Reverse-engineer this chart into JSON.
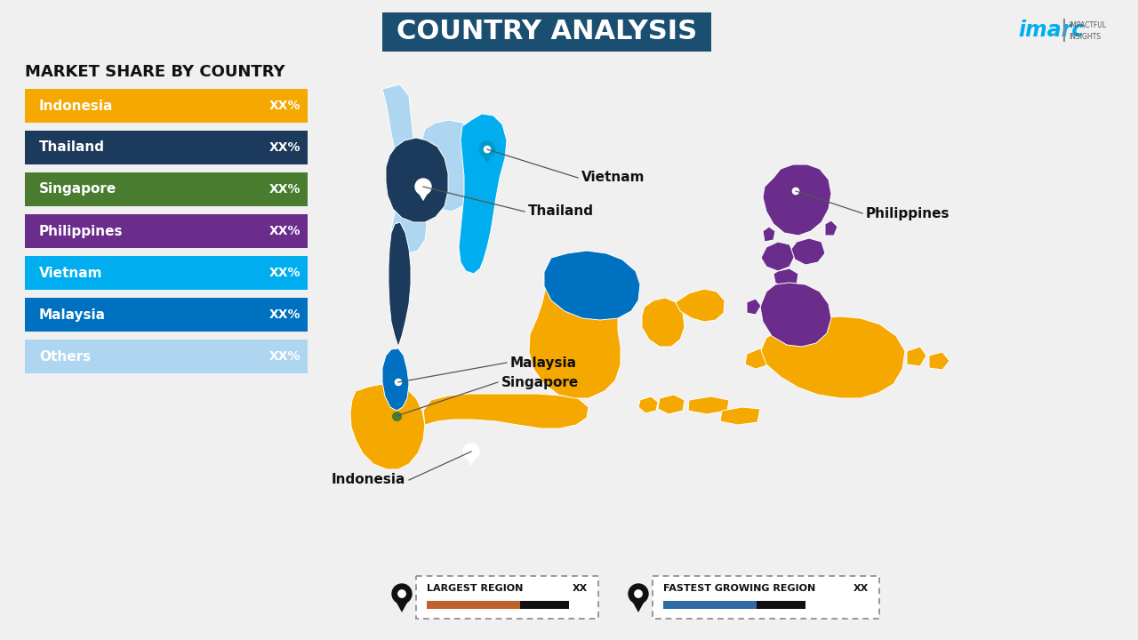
{
  "title": "COUNTRY ANALYSIS",
  "subtitle": "MARKET SHARE BY COUNTRY",
  "background_color": "#F0F0F0",
  "title_bg_color": "#1B4F72",
  "title_text_color": "#FFFFFF",
  "title_fontsize": 22,
  "subtitle_fontsize": 13,
  "legend_items": [
    {
      "label": "Indonesia",
      "color": "#F5A800",
      "value": "XX%"
    },
    {
      "label": "Thailand",
      "color": "#1B3A5C",
      "value": "XX%"
    },
    {
      "label": "Singapore",
      "color": "#4A7C2F",
      "value": "XX%"
    },
    {
      "label": "Philippines",
      "color": "#6B2D8B",
      "value": "XX%"
    },
    {
      "label": "Vietnam",
      "color": "#00AEEF",
      "value": "XX%"
    },
    {
      "label": "Malaysia",
      "color": "#0070C0",
      "value": "XX%"
    },
    {
      "label": "Others",
      "color": "#AED6F1",
      "value": "XX%"
    }
  ],
  "legend_bar_orange": "#C0622B",
  "legend_bar_black": "#111111",
  "legend_bar_blue": "#2E6DA4",
  "footer_labels": [
    "LARGEST REGION",
    "FASTEST GROWING REGION"
  ],
  "footer_values": [
    "XX",
    "XX"
  ]
}
